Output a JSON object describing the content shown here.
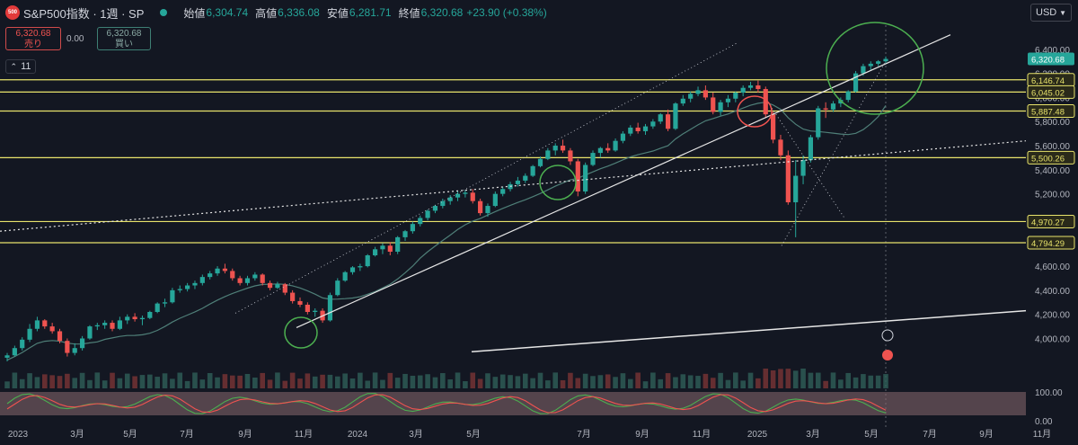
{
  "header": {
    "badge": "500",
    "symbol": "S&P500指数 · 1週 · SP",
    "open_label": "始値",
    "open": "6,304.74",
    "high_label": "高値",
    "high": "6,336.08",
    "low_label": "安値",
    "low": "6,281.71",
    "close_label": "終値",
    "close": "6,320.68",
    "change": "+23.90 (+0.38%)"
  },
  "trade": {
    "sell_price": "6,320.68",
    "sell_label": "売り",
    "spread": "0.00",
    "buy_price": "6,320.68",
    "buy_label": "買い"
  },
  "collapse_label": "11",
  "currency": "USD",
  "colors": {
    "up": "#26a69a",
    "down": "#ef5350",
    "level": "#e8e36b",
    "bg": "#131722"
  },
  "chart_data": [
    {
      "type": "candlestick",
      "title": "S&P500指数 · 1週 · SP",
      "x_tick_labels": [
        "2023",
        "3月",
        "5月",
        "7月",
        "9月",
        "11月",
        "2024",
        "3月",
        "5月",
        "7月",
        "9月",
        "11月",
        "2025",
        "3月",
        "5月",
        "7月",
        "9月",
        "11月"
      ],
      "y_tick_labels": [
        "6,400.00",
        "6,200.00",
        "6,000.00",
        "5,800.00",
        "5,600.00",
        "5,400.00",
        "5,200.00",
        "5,000.00",
        "4,800.00",
        "4,600.00",
        "4,400.00",
        "4,200.00",
        "4,000.00"
      ],
      "ylim": [
        3750,
        6600
      ],
      "last_price": 6320.68,
      "horizontal_levels": [
        6146.74,
        6045.02,
        5887.48,
        5500.26,
        4970.27,
        4794.29
      ],
      "level_labels": [
        "6,146.74",
        "6,045.02",
        "5,887.48",
        "5,500.26",
        "4,970.27",
        "4,794.29"
      ],
      "last_price_label": "6,320.68",
      "ohlc_weekly_approx": [
        [
          3840,
          3880,
          3810,
          3860
        ],
        [
          3860,
          3940,
          3850,
          3920
        ],
        [
          3920,
          4010,
          3900,
          3990
        ],
        [
          3990,
          4120,
          3970,
          4080
        ],
        [
          4080,
          4180,
          4060,
          4150
        ],
        [
          4150,
          4160,
          4080,
          4100
        ],
        [
          4100,
          4130,
          4040,
          4060
        ],
        [
          4060,
          4080,
          3960,
          3980
        ],
        [
          3980,
          4000,
          3850,
          3880
        ],
        [
          3880,
          3960,
          3860,
          3920
        ],
        [
          3920,
          4020,
          3900,
          4000
        ],
        [
          4000,
          4110,
          3990,
          4100
        ],
        [
          4100,
          4130,
          4070,
          4110
        ],
        [
          4110,
          4150,
          4080,
          4130
        ],
        [
          4130,
          4150,
          4060,
          4080
        ],
        [
          4080,
          4180,
          4070,
          4150
        ],
        [
          4150,
          4200,
          4120,
          4180
        ],
        [
          4180,
          4210,
          4140,
          4160
        ],
        [
          4160,
          4190,
          4110,
          4170
        ],
        [
          4170,
          4230,
          4160,
          4220
        ],
        [
          4220,
          4300,
          4210,
          4290
        ],
        [
          4290,
          4330,
          4260,
          4300
        ],
        [
          4300,
          4420,
          4290,
          4400
        ],
        [
          4400,
          4440,
          4380,
          4410
        ],
        [
          4410,
          4460,
          4390,
          4440
        ],
        [
          4440,
          4480,
          4410,
          4460
        ],
        [
          4460,
          4530,
          4440,
          4510
        ],
        [
          4510,
          4560,
          4490,
          4540
        ],
        [
          4540,
          4600,
          4520,
          4580
        ],
        [
          4580,
          4620,
          4540,
          4560
        ],
        [
          4560,
          4580,
          4480,
          4500
        ],
        [
          4500,
          4520,
          4440,
          4460
        ],
        [
          4460,
          4520,
          4440,
          4500
        ],
        [
          4500,
          4550,
          4480,
          4530
        ],
        [
          4530,
          4540,
          4440,
          4460
        ],
        [
          4460,
          4480,
          4400,
          4420
        ],
        [
          4420,
          4470,
          4410,
          4450
        ],
        [
          4450,
          4460,
          4360,
          4380
        ],
        [
          4380,
          4400,
          4290,
          4310
        ],
        [
          4310,
          4340,
          4260,
          4280
        ],
        [
          4280,
          4300,
          4200,
          4220
        ],
        [
          4220,
          4250,
          4180,
          4230
        ],
        [
          4230,
          4250,
          4130,
          4150
        ],
        [
          4150,
          4380,
          4140,
          4360
        ],
        [
          4360,
          4500,
          4350,
          4480
        ],
        [
          4480,
          4560,
          4470,
          4550
        ],
        [
          4550,
          4600,
          4530,
          4590
        ],
        [
          4590,
          4620,
          4560,
          4600
        ],
        [
          4600,
          4700,
          4590,
          4690
        ],
        [
          4690,
          4760,
          4680,
          4740
        ],
        [
          4740,
          4790,
          4700,
          4770
        ],
        [
          4770,
          4800,
          4690,
          4720
        ],
        [
          4720,
          4850,
          4700,
          4840
        ],
        [
          4840,
          4900,
          4810,
          4890
        ],
        [
          4890,
          4970,
          4870,
          4950
        ],
        [
          4950,
          5020,
          4930,
          5000
        ],
        [
          5000,
          5070,
          4980,
          5060
        ],
        [
          5060,
          5110,
          5040,
          5100
        ],
        [
          5100,
          5160,
          5080,
          5140
        ],
        [
          5140,
          5190,
          5110,
          5170
        ],
        [
          5170,
          5220,
          5140,
          5200
        ],
        [
          5200,
          5230,
          5170,
          5210
        ],
        [
          5210,
          5240,
          5120,
          5140
        ],
        [
          5140,
          5160,
          5020,
          5040
        ],
        [
          5040,
          5120,
          5010,
          5100
        ],
        [
          5100,
          5220,
          5090,
          5200
        ],
        [
          5200,
          5260,
          5180,
          5240
        ],
        [
          5240,
          5300,
          5220,
          5280
        ],
        [
          5280,
          5340,
          5260,
          5310
        ],
        [
          5310,
          5370,
          5290,
          5350
        ],
        [
          5350,
          5440,
          5340,
          5430
        ],
        [
          5430,
          5510,
          5420,
          5490
        ],
        [
          5490,
          5580,
          5480,
          5560
        ],
        [
          5560,
          5620,
          5520,
          5600
        ],
        [
          5600,
          5650,
          5540,
          5560
        ],
        [
          5560,
          5580,
          5440,
          5470
        ],
        [
          5470,
          5490,
          5180,
          5220
        ],
        [
          5220,
          5460,
          5200,
          5440
        ],
        [
          5440,
          5560,
          5430,
          5540
        ],
        [
          5540,
          5590,
          5500,
          5580
        ],
        [
          5580,
          5620,
          5540,
          5560
        ],
        [
          5560,
          5660,
          5550,
          5640
        ],
        [
          5640,
          5720,
          5620,
          5700
        ],
        [
          5700,
          5770,
          5680,
          5750
        ],
        [
          5750,
          5790,
          5700,
          5720
        ],
        [
          5720,
          5780,
          5690,
          5760
        ],
        [
          5760,
          5820,
          5740,
          5800
        ],
        [
          5800,
          5870,
          5780,
          5860
        ],
        [
          5860,
          5900,
          5720,
          5740
        ],
        [
          5740,
          5960,
          5730,
          5950
        ],
        [
          5950,
          6020,
          5930,
          5990
        ],
        [
          5990,
          6050,
          5960,
          6030
        ],
        [
          6030,
          6090,
          6010,
          6060
        ],
        [
          6060,
          6100,
          5980,
          6000
        ],
        [
          6000,
          6040,
          5860,
          5880
        ],
        [
          5880,
          5980,
          5850,
          5960
        ],
        [
          5960,
          6020,
          5920,
          5990
        ],
        [
          5990,
          6050,
          5960,
          6040
        ],
        [
          6040,
          6100,
          6010,
          6080
        ],
        [
          6080,
          6130,
          6060,
          6100
        ],
        [
          6100,
          6140,
          6040,
          6070
        ],
        [
          6070,
          6090,
          5830,
          5860
        ],
        [
          5860,
          5880,
          5620,
          5650
        ],
        [
          5650,
          5690,
          5480,
          5520
        ],
        [
          5520,
          5560,
          5110,
          5130
        ],
        [
          5130,
          5480,
          4840,
          5350
        ],
        [
          5350,
          5520,
          5280,
          5480
        ],
        [
          5480,
          5690,
          5460,
          5670
        ],
        [
          5670,
          5930,
          5650,
          5910
        ],
        [
          5910,
          5960,
          5830,
          5900
        ],
        [
          5900,
          5970,
          5880,
          5950
        ],
        [
          5950,
          6000,
          5920,
          5980
        ],
        [
          5980,
          6060,
          5960,
          6050
        ],
        [
          6050,
          6220,
          6040,
          6200
        ],
        [
          6200,
          6280,
          6180,
          6260
        ],
        [
          6260,
          6300,
          6220,
          6280
        ],
        [
          6280,
          6310,
          6260,
          6300
        ],
        [
          6300,
          6340,
          6280,
          6320
        ]
      ]
    },
    {
      "type": "volume",
      "series": [
        {
          "values": []
        }
      ]
    },
    {
      "type": "oscillator",
      "y_tick_labels": [
        "100.00",
        "0.00"
      ],
      "ylim": [
        0,
        100
      ]
    }
  ]
}
